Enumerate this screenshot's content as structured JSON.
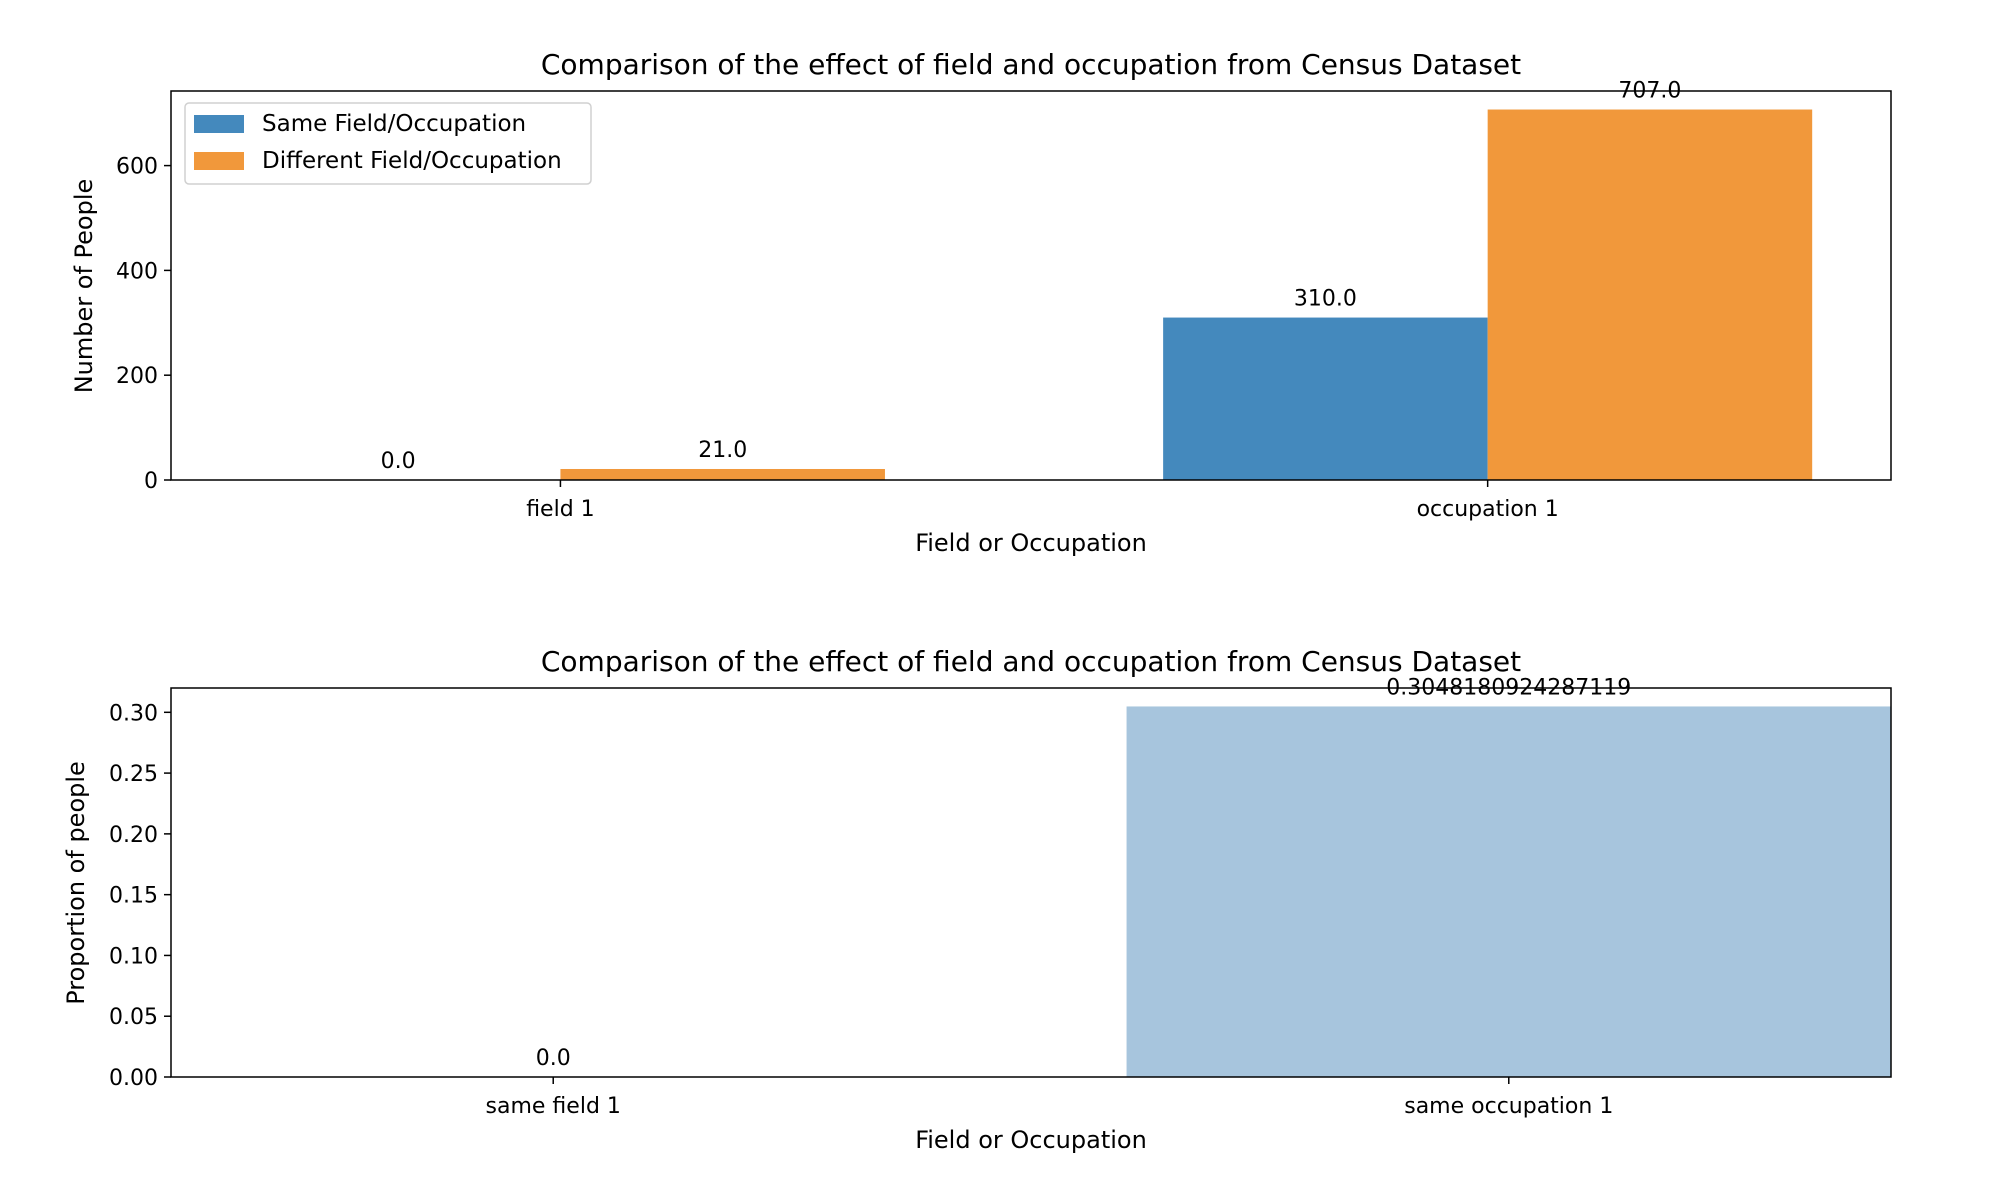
{
  "chart_data": [
    {
      "type": "bar",
      "title": "Comparison of the effect of field and occupation from Census Dataset",
      "xlabel": "Field or Occupation",
      "ylabel": "Number of People",
      "categories": [
        "field 1",
        "occupation 1"
      ],
      "series": [
        {
          "name": "Same Field/Occupation",
          "values": [
            0.0,
            310.0
          ],
          "labels": [
            "0.0",
            "310.0"
          ],
          "color": "#4489bd"
        },
        {
          "name": "Different Field/Occupation",
          "values": [
            21.0,
            707.0
          ],
          "labels": [
            "21.0",
            "707.0"
          ],
          "color": "#f1983b"
        }
      ],
      "ylim": [
        0,
        742.35
      ],
      "yticks": [
        0,
        200,
        400,
        600
      ],
      "ytick_labels": [
        "0",
        "200",
        "400",
        "600"
      ],
      "grid": false,
      "legend": "top-left"
    },
    {
      "type": "bar",
      "title": "Comparison of the effect of field and occupation from Census Dataset",
      "xlabel": "Field or Occupation",
      "ylabel": "Proportion of people",
      "categories": [
        "same field 1",
        "same occupation 1"
      ],
      "values": [
        0.0,
        0.3048180924287119
      ],
      "labels": [
        "0.0",
        "0.3048180924287119"
      ],
      "color": "#a7c5dd",
      "ylim": [
        0,
        0.32
      ],
      "yticks": [
        0.0,
        0.05,
        0.1,
        0.15,
        0.2,
        0.25,
        0.3
      ],
      "ytick_labels": [
        "0.00",
        "0.05",
        "0.10",
        "0.15",
        "0.20",
        "0.25",
        "0.30"
      ],
      "grid": false,
      "legend": "none"
    }
  ]
}
